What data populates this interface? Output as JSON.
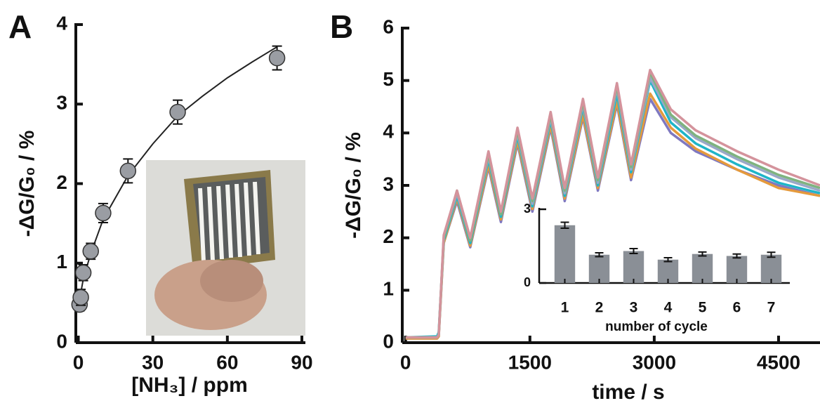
{
  "chart_data": [
    {
      "type": "scatter",
      "panel_label": "A",
      "x_label": "[NH₃] / ppm",
      "y_label": "-ΔG/G₀ / %",
      "x": [
        0.5,
        1,
        2,
        5,
        10,
        20,
        40,
        80
      ],
      "values": [
        0.48,
        0.57,
        0.88,
        1.15,
        1.63,
        2.16,
        2.9,
        3.58
      ],
      "errors": [
        0.08,
        0.1,
        0.1,
        0.1,
        0.12,
        0.15,
        0.15,
        0.15
      ],
      "color": "#9a9da3",
      "fit": {
        "x": [
          0,
          2,
          5,
          10,
          20,
          30,
          40,
          50,
          60,
          70,
          80
        ],
        "values": [
          0.45,
          0.8,
          1.12,
          1.55,
          2.1,
          2.5,
          2.85,
          3.1,
          3.33,
          3.53,
          3.72
        ]
      },
      "xlim": [
        -1,
        90
      ],
      "xticks": [
        0,
        30,
        60,
        90
      ],
      "ylim": [
        0,
        4
      ],
      "yticks": [
        0,
        1,
        2,
        3,
        4
      ]
    },
    {
      "type": "line",
      "panel_label": "B",
      "x_label": "time / s",
      "y_label": "-ΔG/G₀ / %",
      "x": [
        0,
        380,
        400,
        460,
        620,
        780,
        1000,
        1150,
        1350,
        1530,
        1750,
        1920,
        2140,
        2320,
        2550,
        2720,
        2950,
        3200,
        3500,
        4000,
        4500,
        5000
      ],
      "series": [
        {
          "color": "#7f78c0",
          "values": [
            0.08,
            0.08,
            0.12,
            1.9,
            2.7,
            1.82,
            3.35,
            2.3,
            3.8,
            2.5,
            4.1,
            2.7,
            4.3,
            2.9,
            4.55,
            3.1,
            4.65,
            4.0,
            3.65,
            3.3,
            3.0,
            2.8
          ]
        },
        {
          "color": "#e59a3c",
          "values": [
            0.08,
            0.08,
            0.12,
            1.9,
            2.75,
            1.85,
            3.4,
            2.35,
            3.85,
            2.55,
            4.15,
            2.75,
            4.35,
            2.95,
            4.6,
            3.15,
            4.75,
            4.1,
            3.7,
            3.3,
            2.95,
            2.8
          ]
        },
        {
          "color": "#1fb5c8",
          "values": [
            0.1,
            0.12,
            0.2,
            1.95,
            2.8,
            1.9,
            3.5,
            2.4,
            3.95,
            2.6,
            4.25,
            2.8,
            4.5,
            3.0,
            4.75,
            3.25,
            5.0,
            4.2,
            3.8,
            3.4,
            3.05,
            2.85
          ]
        },
        {
          "color": "#9aa8c8",
          "values": [
            0.1,
            0.1,
            0.15,
            2.0,
            2.85,
            1.95,
            3.55,
            2.45,
            4.0,
            2.65,
            4.3,
            2.85,
            4.55,
            3.05,
            4.85,
            3.3,
            5.05,
            4.3,
            3.9,
            3.5,
            3.15,
            2.9
          ]
        },
        {
          "color": "#7fb37f",
          "values": [
            0.1,
            0.1,
            0.15,
            2.0,
            2.9,
            1.95,
            3.6,
            2.45,
            4.05,
            2.7,
            4.35,
            2.9,
            4.6,
            3.1,
            4.9,
            3.35,
            5.15,
            4.35,
            3.95,
            3.55,
            3.2,
            2.95
          ]
        },
        {
          "color": "#d4939c",
          "values": [
            0.1,
            0.1,
            0.15,
            2.05,
            2.9,
            2.0,
            3.65,
            2.5,
            4.1,
            2.75,
            4.4,
            2.95,
            4.65,
            3.15,
            4.95,
            3.4,
            5.2,
            4.45,
            4.05,
            3.65,
            3.3,
            3.0
          ]
        }
      ],
      "xlim": [
        -40,
        5000
      ],
      "xticks": [
        0,
        1500,
        3000,
        4500
      ],
      "ylim": [
        0,
        6
      ],
      "yticks": [
        0,
        1,
        2,
        3,
        4,
        5,
        6
      ]
    },
    {
      "type": "bar",
      "x_label": "number of cycle",
      "categories": [
        "1",
        "2",
        "3",
        "4",
        "5",
        "6",
        "7"
      ],
      "values": [
        2.35,
        1.15,
        1.3,
        0.95,
        1.18,
        1.1,
        1.15
      ],
      "errors": [
        0.12,
        0.08,
        0.1,
        0.08,
        0.08,
        0.08,
        0.1
      ],
      "color": "#8a8f96",
      "ylim": [
        0,
        3
      ],
      "yticks": [
        0,
        3
      ]
    }
  ]
}
